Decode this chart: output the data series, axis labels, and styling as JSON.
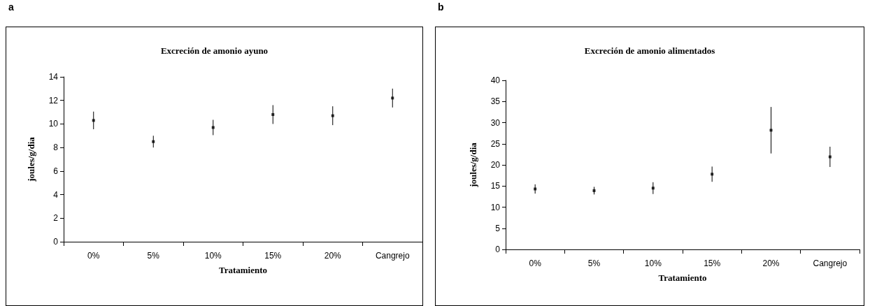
{
  "chart_data": [
    {
      "type": "scatter",
      "title": "Excreción de amonio ayuno",
      "xlabel": "Tratamiento",
      "ylabel": "joules/g/dia",
      "annotations": [
        "a"
      ],
      "categories": [
        "0%",
        "5%",
        "10%",
        "15%",
        "20%",
        "Cangrejo"
      ],
      "series": [
        {
          "color": "#000000",
          "values": [
            10.3,
            8.5,
            9.7,
            10.8,
            10.7,
            12.2
          ],
          "errors": [
            0.75,
            0.5,
            0.65,
            0.8,
            0.8,
            0.8
          ]
        }
      ],
      "ylim": [
        0,
        14
      ],
      "yticks": [
        0,
        2,
        4,
        6,
        8,
        10,
        12,
        14
      ],
      "marker": "square",
      "grid": false
    },
    {
      "type": "scatter",
      "title": "Excreción de amonio alimentados",
      "xlabel": "Tratamiento",
      "ylabel": "joules/g/dia",
      "annotations": [
        "b"
      ],
      "categories": [
        "0%",
        "5%",
        "10%",
        "15%",
        "20%",
        "Cangrejo"
      ],
      "series": [
        {
          "color": "#000000",
          "values": [
            14.3,
            13.9,
            14.5,
            17.8,
            28.2,
            21.9
          ],
          "errors": [
            1.1,
            0.9,
            1.4,
            1.8,
            5.5,
            2.4
          ]
        }
      ],
      "ylim": [
        0,
        40
      ],
      "yticks": [
        0,
        5,
        10,
        15,
        20,
        25,
        30,
        35,
        40
      ],
      "marker": "square",
      "grid": false
    }
  ]
}
